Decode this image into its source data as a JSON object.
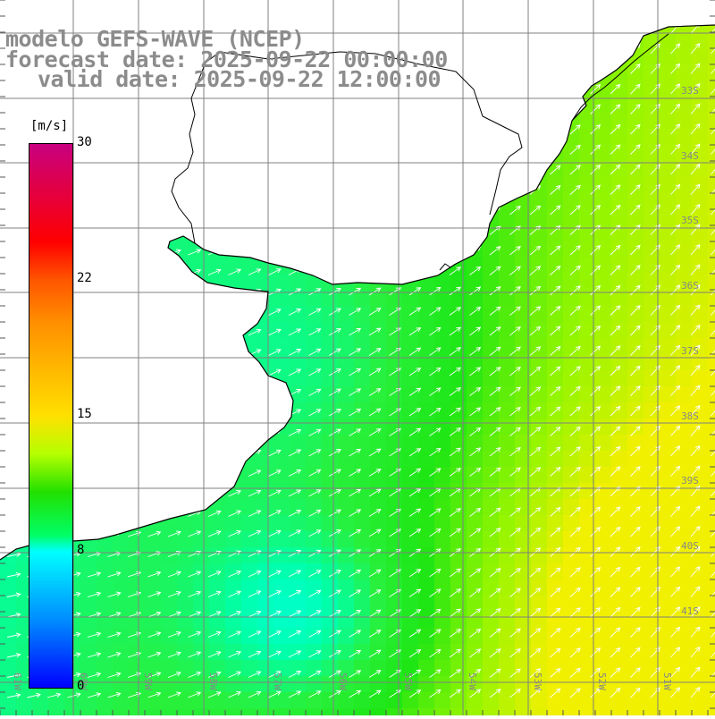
{
  "title": {
    "model": "modelo GEFS-WAVE (NCEP)",
    "forecast": "forecast date: 2025-09-22 00:00:00",
    "valid": "valid date: 2025-09-22 12:00:00"
  },
  "colorbar": {
    "unit": "[m/s]",
    "ticks": [
      {
        "label": "30",
        "value": 30
      },
      {
        "label": "22",
        "value": 22
      },
      {
        "label": "15",
        "value": 15
      },
      {
        "label": "8",
        "value": 8
      },
      {
        "label": "0",
        "value": 0
      }
    ],
    "colors": [
      "#0000ff",
      "#0088ff",
      "#00ffff",
      "#00ff66",
      "#22e000",
      "#b5ff00",
      "#ffe000",
      "#ff9000",
      "#ff5500",
      "#ff0000",
      "#c8007f"
    ]
  },
  "map": {
    "lat_labels": [
      "33S",
      "34S",
      "35S",
      "36S",
      "37S",
      "38S",
      "39S",
      "40S",
      "41S"
    ],
    "lon_labels": [
      "61W",
      "60W",
      "59W",
      "58W",
      "57W",
      "56W",
      "55W",
      "54W",
      "53W",
      "52W",
      "51W"
    ],
    "land_color": "#ffffff",
    "coast_color": "#000000",
    "grid_color": "#808080",
    "arrow_color": "#ffffff",
    "wind_direction": "southwest to northeast"
  }
}
